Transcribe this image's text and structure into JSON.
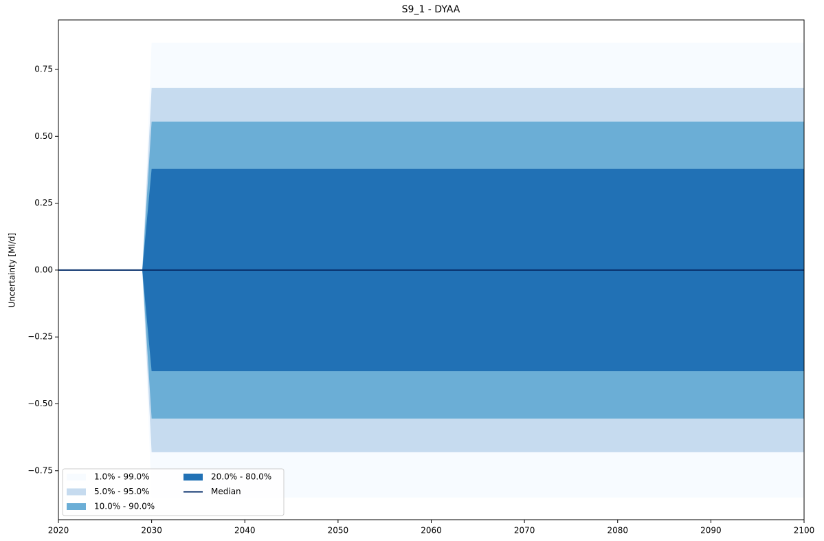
{
  "chart_data": {
    "type": "fan",
    "title": "S9_1 - DYAA",
    "y_label": "Uncertainty [Ml/d]",
    "x": [
      2020,
      2029,
      2030,
      2100
    ],
    "bands": [
      {
        "name": "1.0% - 99.0%",
        "color": "#f7fbff",
        "lower": [
          0,
          0,
          -0.85,
          -0.85
        ],
        "upper": [
          0,
          0,
          0.85,
          0.85
        ]
      },
      {
        "name": "5.0% - 95.0%",
        "color": "#c6dbef",
        "lower": [
          0,
          0,
          -0.681,
          -0.681
        ],
        "upper": [
          0,
          0,
          0.681,
          0.681
        ]
      },
      {
        "name": "10.0% - 90.0%",
        "color": "#6baed6",
        "lower": [
          0,
          0,
          -0.555,
          -0.555
        ],
        "upper": [
          0,
          0,
          0.555,
          0.555
        ]
      },
      {
        "name": "20.0% - 80.0%",
        "color": "#2171b5",
        "lower": [
          0,
          0,
          -0.378,
          -0.378
        ],
        "upper": [
          0,
          0,
          0.378,
          0.378
        ]
      }
    ],
    "series": [
      {
        "name": "Median",
        "color": "#08306b",
        "values": [
          0,
          0,
          0,
          0
        ]
      }
    ],
    "xlim": [
      2020,
      2100
    ],
    "xticks": [
      2020,
      2030,
      2040,
      2050,
      2060,
      2070,
      2080,
      2090,
      2100
    ],
    "ylim": [
      -0.933,
      0.935
    ],
    "yticks": [
      {
        "value": -0.75,
        "label": "−0.75"
      },
      {
        "value": -0.5,
        "label": "−0.50"
      },
      {
        "value": -0.25,
        "label": "−0.25"
      },
      {
        "value": 0,
        "label": "0.00"
      },
      {
        "value": 0.25,
        "label": "0.25"
      },
      {
        "value": 0.5,
        "label": "0.50"
      },
      {
        "value": 0.75,
        "label": "0.75"
      }
    ],
    "grid": false,
    "legend": "lower left"
  }
}
